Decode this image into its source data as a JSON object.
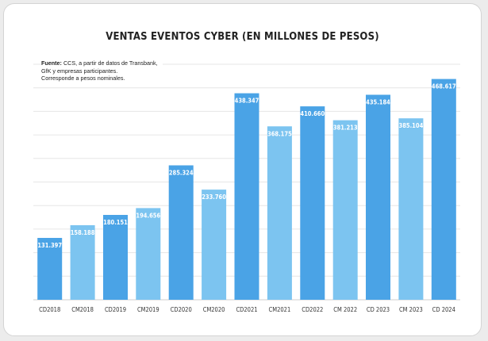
{
  "chart_data": {
    "type": "bar",
    "title": "VENTAS EVENTOS CYBER (EN MILLONES DE PESOS)",
    "source_label": "Fuente:",
    "source_lines": [
      " CCS, a partir de datos de Transbank,",
      "GfK y empresas participantes.",
      "Corresponde a pesos nominales."
    ],
    "categories": [
      "CD2018",
      "CM2018",
      "CD2019",
      "CM2019",
      "CD2020",
      "CM2020",
      "CD2021",
      "CM2021",
      "CD2022",
      "CM 2022",
      "CD 2023",
      "CM 2023",
      "CD 2024"
    ],
    "values": [
      131397,
      158188,
      180151,
      194656,
      285324,
      233760,
      438347,
      368175,
      410660,
      381213,
      435184,
      385104,
      468617
    ],
    "value_labels": [
      "131.397",
      "158.188",
      "180.151",
      "194.656",
      "285.324",
      "233.760",
      "438.347",
      "368.175",
      "410.660",
      "381.213",
      "435.184",
      "385.104",
      "468.617"
    ],
    "ylim": [
      0,
      500000
    ],
    "grid": true,
    "legend": "none",
    "colors": {
      "CD": "#4aa3e6",
      "CM": "#7cc4f0"
    }
  }
}
